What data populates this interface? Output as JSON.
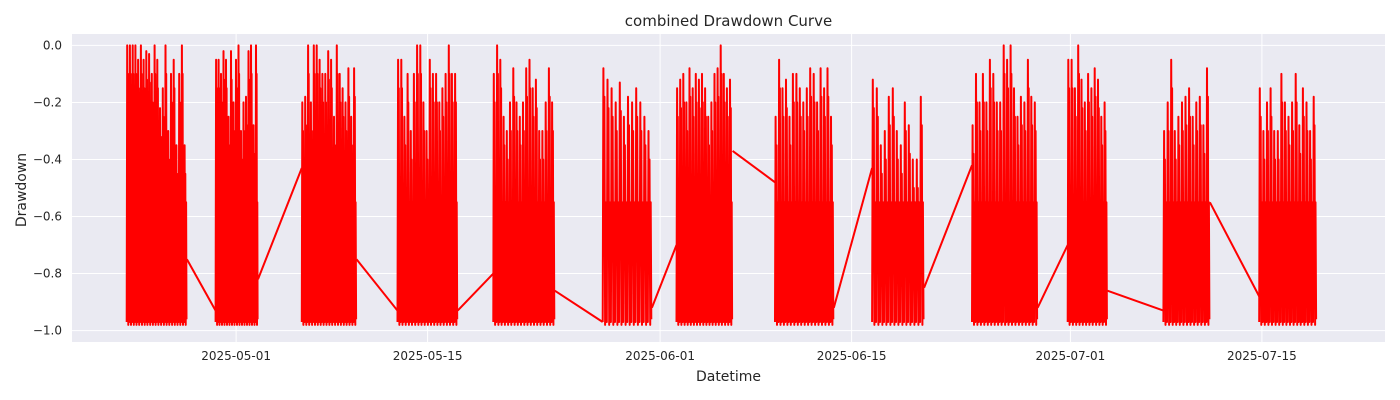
{
  "chart_data": {
    "type": "line",
    "title": "combined Drawdown Curve",
    "xlabel": "Datetime",
    "ylabel": "Drawdown",
    "xlim": [
      "2025-04-19",
      "2025-07-24"
    ],
    "ylim": [
      -1.04,
      0.04
    ],
    "grid": true,
    "legend": "none",
    "colors": {
      "line": "#ff0000",
      "plot_bg": "#eaeaf2",
      "grid": "#ffffff"
    },
    "x_ticks": [
      "2025-05-01",
      "2025-05-15",
      "2025-06-01",
      "2025-06-15",
      "2025-07-01",
      "2025-07-15"
    ],
    "y_ticks": [
      0.0,
      -0.2,
      -0.4,
      -0.6,
      -0.8,
      -1.0
    ],
    "y_tick_labels": [
      "0.0",
      "−0.2",
      "−0.4",
      "−0.6",
      "−0.8",
      "−1.0"
    ],
    "series": [
      {
        "bursts": [
          {
            "start": "2025-04-23",
            "end": "2025-04-27.4",
            "peaks": [
              0.0,
              0.0,
              0.0,
              0.0,
              -0.05,
              0.0,
              -0.05,
              -0.02,
              -0.03,
              -0.1,
              0.0,
              -0.05,
              -0.22,
              -0.15,
              0.0,
              -0.3,
              -0.1,
              -0.05,
              -0.35,
              -0.1,
              0.0,
              -0.35
            ]
          },
          {
            "start": "2025-04-29.5",
            "end": "2025-05-02.6",
            "peaks": [
              -0.05,
              -0.05,
              -0.1,
              -0.02,
              -0.05,
              -0.25,
              -0.02,
              -0.2,
              -0.05,
              0.0,
              -0.3,
              -0.2,
              -0.18,
              -0.02,
              0.0,
              -0.28,
              0.0
            ]
          },
          {
            "start": "2025-05-05.8",
            "end": "2025-05-09.8",
            "peaks": [
              -0.2,
              -0.18,
              0.0,
              -0.2,
              0.0,
              0.0,
              -0.05,
              -0.1,
              -0.1,
              -0.02,
              -0.05,
              -0.25,
              0.0,
              -0.1,
              -0.15,
              -0.2,
              -0.08,
              -0.25,
              -0.08
            ]
          },
          {
            "start": "2025-05-12.8",
            "end": "2025-05-17.2",
            "peaks": [
              -0.05,
              -0.05,
              -0.25,
              -0.1,
              -0.3,
              -0.1,
              0.0,
              0.0,
              -0.2,
              -0.3,
              -0.05,
              -0.1,
              -0.1,
              -0.2,
              -0.15,
              -0.1,
              0.0,
              -0.1,
              -0.1
            ]
          },
          {
            "start": "2025-05-19.8",
            "end": "2025-05-24.3",
            "peaks": [
              -0.1,
              0.0,
              -0.05,
              -0.25,
              -0.3,
              -0.2,
              -0.08,
              -0.2,
              -0.25,
              -0.2,
              -0.08,
              -0.05,
              -0.15,
              -0.12,
              -0.3,
              -0.3,
              -0.2,
              -0.08,
              -0.2
            ]
          },
          {
            "start": "2025-05-27.8",
            "end": "2025-05-31.4",
            "peaks": [
              -0.08,
              -0.12,
              -0.15,
              -0.2,
              -0.13,
              -0.25,
              -0.18,
              -0.2,
              -0.15,
              -0.2,
              -0.25,
              -0.3
            ]
          },
          {
            "start": "2025-06-02.2",
            "end": "2025-06-06.3",
            "peaks": [
              -0.15,
              -0.12,
              -0.1,
              -0.2,
              -0.08,
              -0.15,
              -0.1,
              -0.12,
              -0.1,
              -0.15,
              -0.25,
              -0.2,
              -0.1,
              -0.08,
              0.0,
              -0.1,
              -0.15,
              -0.12
            ]
          },
          {
            "start": "2025-06-09.4",
            "end": "2025-06-13.7",
            "peaks": [
              -0.25,
              -0.05,
              -0.15,
              -0.12,
              -0.25,
              -0.1,
              -0.1,
              -0.15,
              -0.2,
              -0.15,
              -0.08,
              -0.1,
              -0.2,
              -0.08,
              -0.15,
              -0.08,
              -0.25
            ]
          },
          {
            "start": "2025-06-16.5",
            "end": "2025-06-20.3",
            "peaks": [
              -0.12,
              -0.15,
              -0.35,
              -0.3,
              -0.18,
              -0.15,
              -0.3,
              -0.35,
              -0.2,
              -0.28,
              -0.4,
              -0.4,
              -0.18
            ]
          },
          {
            "start": "2025-06-23.8",
            "end": "2025-06-28.6",
            "peaks": [
              -0.28,
              -0.1,
              -0.2,
              -0.1,
              -0.2,
              -0.05,
              -0.1,
              -0.2,
              -0.2,
              0.0,
              -0.05,
              0.0,
              -0.15,
              -0.25,
              -0.18,
              -0.2,
              -0.05,
              -0.18,
              -0.2
            ]
          },
          {
            "start": "2025-06-30.8",
            "end": "2025-07-03.7",
            "peaks": [
              -0.05,
              -0.05,
              -0.15,
              0.0,
              -0.12,
              -0.2,
              -0.1,
              -0.15,
              -0.08,
              -0.12,
              -0.25,
              -0.2
            ]
          },
          {
            "start": "2025-07-07.8",
            "end": "2025-07-11.2",
            "peaks": [
              -0.3,
              -0.2,
              -0.05,
              -0.3,
              -0.25,
              -0.2,
              -0.18,
              -0.15,
              -0.25,
              -0.2,
              -0.18,
              -0.28,
              -0.08
            ]
          },
          {
            "start": "2025-07-14.8",
            "end": "2025-07-19.0",
            "peaks": [
              -0.15,
              -0.3,
              -0.2,
              -0.15,
              -0.3,
              -0.3,
              -0.1,
              -0.2,
              -0.25,
              -0.2,
              -0.1,
              -0.28,
              -0.15,
              -0.2,
              -0.3,
              -0.18
            ]
          }
        ],
        "connectors": [
          {
            "x": [
              "2025-04-27.4",
              "2025-04-29.5"
            ],
            "y": [
              -0.75,
              -0.93
            ]
          },
          {
            "x": [
              "2025-05-02.6",
              "2025-05-05.8"
            ],
            "y": [
              -0.82,
              -0.43
            ]
          },
          {
            "x": [
              "2025-05-09.8",
              "2025-05-12.8"
            ],
            "y": [
              -0.75,
              -0.93
            ]
          },
          {
            "x": [
              "2025-05-17.2",
              "2025-05-19.8"
            ],
            "y": [
              -0.93,
              -0.8
            ]
          },
          {
            "x": [
              "2025-05-24.3",
              "2025-05-27.8"
            ],
            "y": [
              -0.86,
              -0.97
            ]
          },
          {
            "x": [
              "2025-05-31.4",
              "2025-06-02.2"
            ],
            "y": [
              -0.92,
              -0.7
            ]
          },
          {
            "x": [
              "2025-06-06.3",
              "2025-06-09.4"
            ],
            "y": [
              -0.37,
              -0.48
            ]
          },
          {
            "x": [
              "2025-06-13.7",
              "2025-06-16.5"
            ],
            "y": [
              -0.92,
              -0.43
            ]
          },
          {
            "x": [
              "2025-06-20.3",
              "2025-06-23.8"
            ],
            "y": [
              -0.85,
              -0.42
            ]
          },
          {
            "x": [
              "2025-06-28.6",
              "2025-06-30.8"
            ],
            "y": [
              -0.92,
              -0.7
            ]
          },
          {
            "x": [
              "2025-07-03.7",
              "2025-07-07.8"
            ],
            "y": [
              -0.86,
              -0.93
            ]
          },
          {
            "x": [
              "2025-07-11.2",
              "2025-07-14.8"
            ],
            "y": [
              -0.55,
              -0.88
            ]
          }
        ]
      }
    ]
  }
}
